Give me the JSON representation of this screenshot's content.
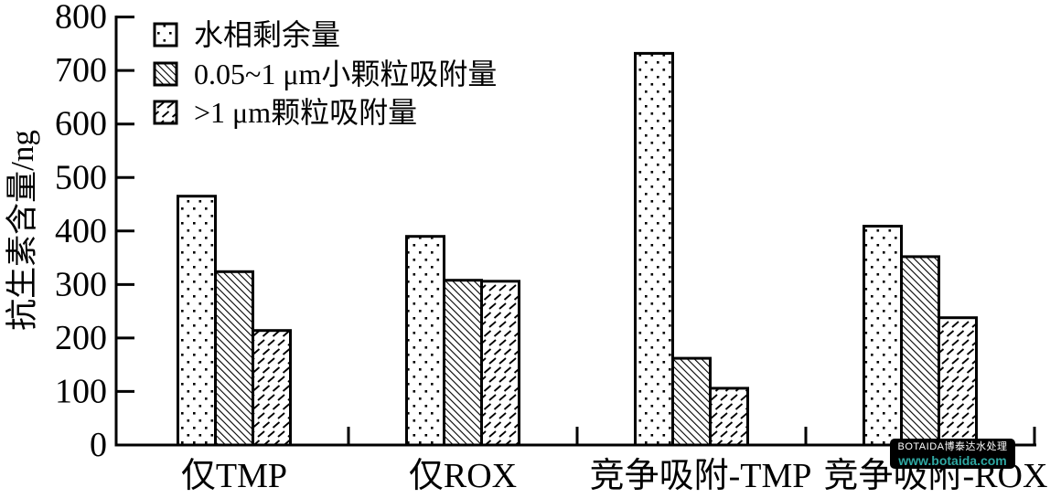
{
  "chart_data": {
    "type": "bar",
    "title": "",
    "xlabel": "",
    "ylabel": "抗生素含量/ng",
    "ylim": [
      0,
      800
    ],
    "yticks": [
      0,
      100,
      200,
      300,
      400,
      500,
      600,
      700,
      800
    ],
    "grid": false,
    "legend_position": "top-left",
    "bar_fill": "#ffffff",
    "stroke_color": "#000000",
    "categories": [
      "仅TMP",
      "仅ROX",
      "竞争吸附-TMP",
      "竞争吸附-ROX"
    ],
    "series": [
      {
        "name": "水相剩余量",
        "pattern": "dots-pattern-icon",
        "values": [
          465,
          390,
          732,
          409
        ]
      },
      {
        "name": "0.05~1 μm小颗粒吸附量",
        "pattern": "dense-diagonal-pattern-icon",
        "values": [
          324,
          308,
          162,
          352
        ]
      },
      {
        "name": ">1 μm颗粒吸附量",
        "pattern": "sparse-diagonal-pattern-icon",
        "values": [
          214,
          306,
          106,
          238
        ]
      }
    ]
  },
  "watermark": {
    "line1": "BOTAIDA博泰达水处理",
    "line2": "www.botaida.com",
    "bg_color": "#000000",
    "line1_color": "#ffffff",
    "line2_color": "#2fa8a3"
  }
}
